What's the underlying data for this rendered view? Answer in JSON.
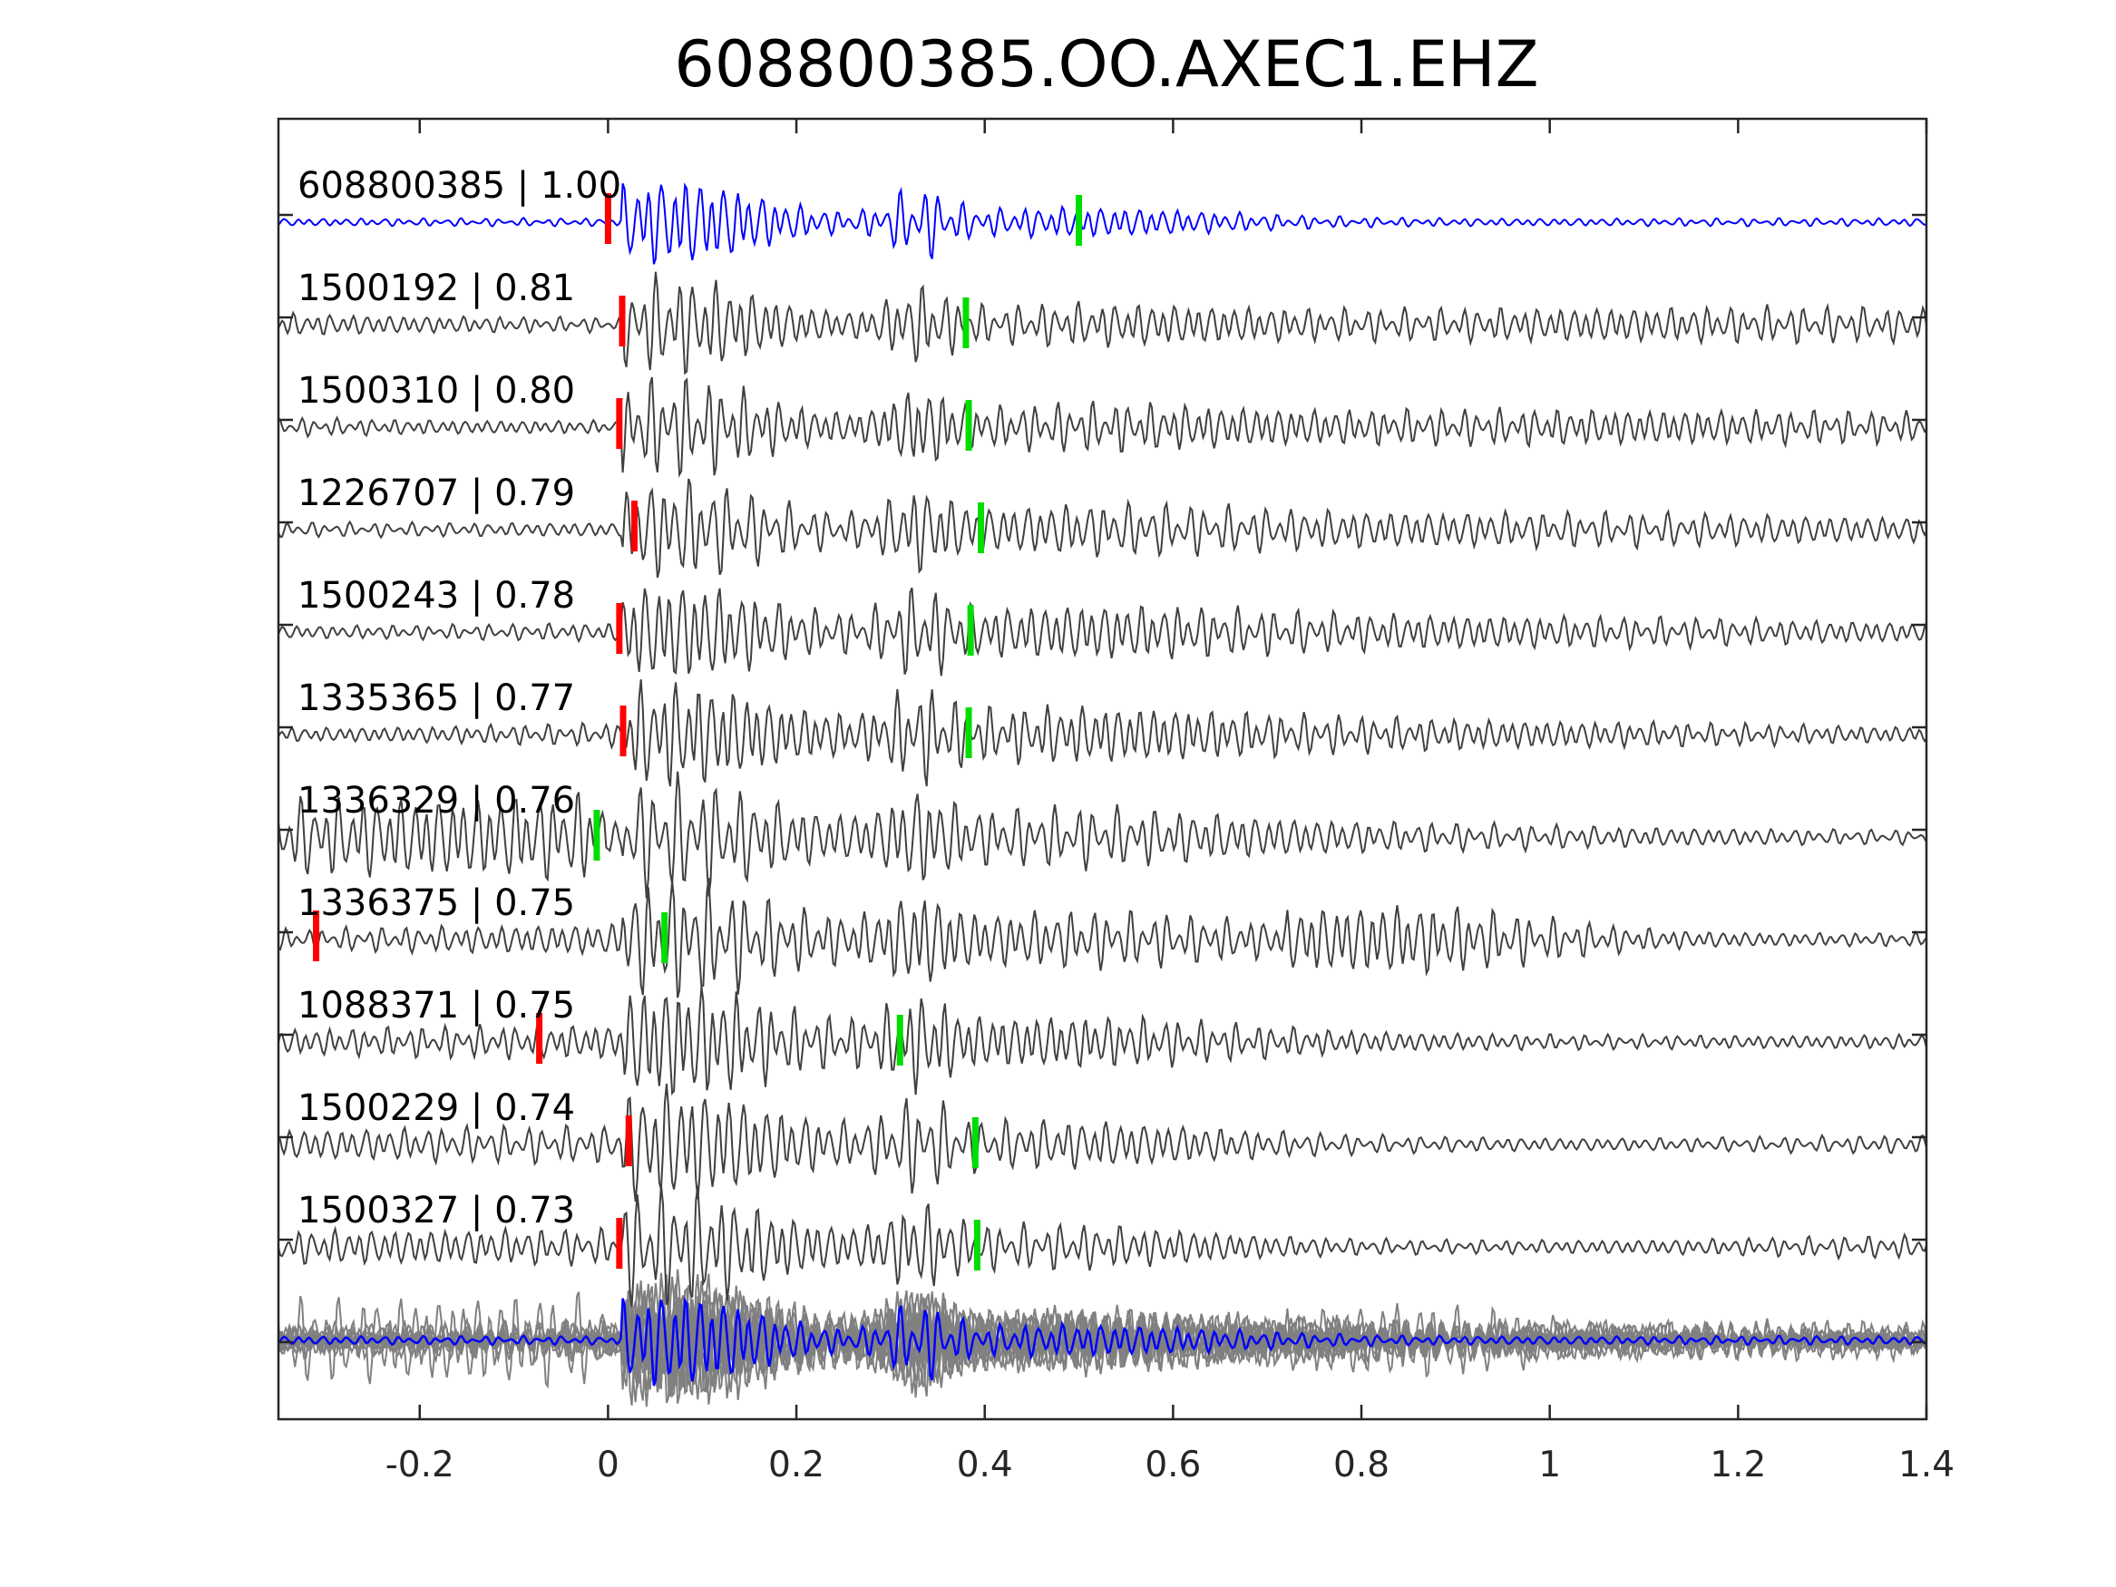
{
  "chart_data": {
    "type": "line",
    "title": "608800385.OO.AXEC1.EHZ",
    "xlabel": "",
    "ylabel": "",
    "xlim": [
      -0.35,
      1.4
    ],
    "xticks": [
      -0.2,
      0,
      0.2,
      0.4,
      0.6,
      0.8,
      1,
      1.2,
      1.4
    ],
    "xtick_labels": [
      "-0.2",
      "0",
      "0.2",
      "0.4",
      "0.6",
      "0.8",
      "1",
      "1.2",
      "1.4"
    ],
    "grid": false,
    "colors": {
      "reference": "#0000ff",
      "trace": "#404040",
      "stack": "#808080",
      "p_pick": "#ff0000",
      "s_pick": "#00dd00"
    },
    "traces": [
      {
        "id": "608800385",
        "cc": "1.00",
        "p_pick": 0.0,
        "s_pick": 0.5,
        "reference": true
      },
      {
        "id": "1500192",
        "cc": "0.81",
        "p_pick": 0.015,
        "s_pick": 0.38
      },
      {
        "id": "1500310",
        "cc": "0.80",
        "p_pick": 0.012,
        "s_pick": 0.383
      },
      {
        "id": "1226707",
        "cc": "0.79",
        "p_pick": 0.028,
        "s_pick": 0.396
      },
      {
        "id": "1500243",
        "cc": "0.78",
        "p_pick": 0.012,
        "s_pick": 0.385
      },
      {
        "id": "1335365",
        "cc": "0.77",
        "p_pick": 0.016,
        "s_pick": 0.383
      },
      {
        "id": "1336329",
        "cc": "0.76",
        "p_pick": null,
        "s_pick": -0.012
      },
      {
        "id": "1336375",
        "cc": "0.75",
        "p_pick": -0.31,
        "s_pick": 0.06
      },
      {
        "id": "1088371",
        "cc": "0.75",
        "p_pick": -0.073,
        "s_pick": 0.31
      },
      {
        "id": "1500229",
        "cc": "0.74",
        "p_pick": 0.022,
        "s_pick": 0.39
      },
      {
        "id": "1500327",
        "cc": "0.73",
        "p_pick": 0.012,
        "s_pick": 0.392
      }
    ]
  }
}
